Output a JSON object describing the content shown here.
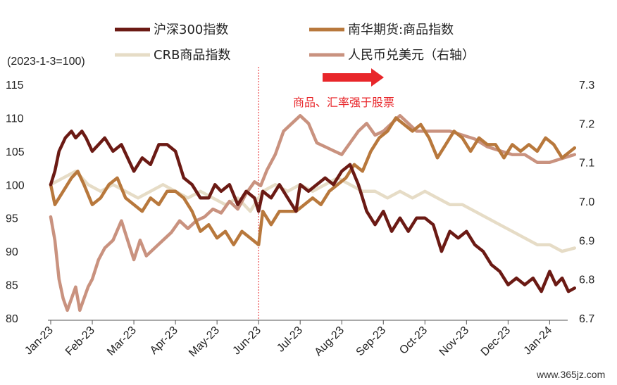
{
  "chart_data": {
    "type": "line",
    "title": "",
    "note": "(2023-1-3=100)",
    "xlabel": "",
    "ylabel": "",
    "x_ticks": [
      "Jan-23",
      "Feb-23",
      "Mar-23",
      "Apr-23",
      "May-23",
      "Jun-23",
      "Jul-23",
      "Aug-23",
      "Sep-23",
      "Oct-23",
      "Nov-23",
      "Dec-23",
      "Jan-24"
    ],
    "ylim": [
      80,
      115
    ],
    "y_ticks": [
      "80",
      "85",
      "90",
      "95",
      "100",
      "105",
      "110",
      "115"
    ],
    "y2lim": [
      6.7,
      7.3
    ],
    "y2_ticks": [
      "6.7",
      "6.8",
      "6.9",
      "7.0",
      "7.1",
      "7.2",
      "7.3"
    ],
    "divider_x": 5,
    "annotation": {
      "text": "商品、汇率强于股票",
      "arrow": "right"
    },
    "watermark": "www.365jz.com",
    "legend": [
      "沪深300指数",
      "南华期货:商品指数",
      "CRB商品指数",
      "人民币兑美元（右轴）"
    ],
    "series": [
      {
        "name": "沪深300指数",
        "color": "#6b1a14",
        "axis": "left",
        "x": [
          0,
          0.1,
          0.2,
          0.35,
          0.5,
          0.6,
          0.75,
          0.85,
          1,
          1.15,
          1.3,
          1.5,
          1.7,
          1.85,
          2,
          2.2,
          2.4,
          2.6,
          2.8,
          3,
          3.2,
          3.4,
          3.6,
          3.8,
          3.95,
          4.1,
          4.3,
          4.5,
          4.7,
          4.9,
          5,
          5.1,
          5.3,
          5.5,
          5.7,
          5.9,
          6,
          6.2,
          6.4,
          6.6,
          6.8,
          7,
          7.2,
          7.4,
          7.6,
          7.8,
          8,
          8.2,
          8.4,
          8.6,
          8.8,
          9,
          9.2,
          9.4,
          9.6,
          9.8,
          10,
          10.2,
          10.4,
          10.6,
          10.8,
          11,
          11.2,
          11.4,
          11.6,
          11.8,
          12,
          12.15,
          12.3,
          12.45,
          12.6
        ],
        "values": [
          100,
          102,
          105,
          107,
          108,
          107,
          108,
          107,
          105,
          106,
          107,
          105,
          106,
          104,
          102,
          104,
          103,
          106,
          106,
          105,
          101,
          100,
          98,
          98,
          100,
          99,
          100,
          97,
          99,
          98,
          96,
          99,
          98,
          100,
          98,
          96,
          100,
          99,
          100,
          101,
          100,
          102,
          103,
          100,
          96,
          94,
          96,
          93,
          95,
          93,
          95,
          95,
          94,
          90,
          93,
          92,
          93,
          91,
          90,
          88,
          87,
          85,
          86,
          85,
          86,
          84,
          87,
          85,
          86,
          84,
          84.5
        ]
      },
      {
        "name": "南华期货:商品指数",
        "color": "#b8783c",
        "axis": "left",
        "x": [
          0,
          0.1,
          0.3,
          0.5,
          0.65,
          0.8,
          1,
          1.2,
          1.4,
          1.6,
          1.8,
          2,
          2.2,
          2.4,
          2.6,
          2.8,
          3,
          3.2,
          3.4,
          3.6,
          3.8,
          4,
          4.2,
          4.4,
          4.6,
          4.8,
          5,
          5.1,
          5.3,
          5.5,
          5.7,
          5.9,
          6.1,
          6.3,
          6.5,
          6.7,
          6.9,
          7.1,
          7.3,
          7.5,
          7.7,
          7.9,
          8.1,
          8.3,
          8.5,
          8.7,
          8.9,
          9.1,
          9.3,
          9.5,
          9.7,
          9.9,
          10.1,
          10.3,
          10.5,
          10.7,
          10.9,
          11.1,
          11.3,
          11.5,
          11.7,
          11.9,
          12.1,
          12.3,
          12.5,
          12.6
        ],
        "values": [
          100,
          97,
          99,
          101,
          102,
          100,
          97,
          98,
          100,
          101,
          98,
          97,
          96,
          98,
          97,
          99,
          99,
          98,
          96,
          93,
          94,
          92,
          93,
          91,
          93,
          92,
          91,
          96,
          94,
          96,
          96,
          96,
          97,
          98,
          97,
          99,
          100,
          101,
          103,
          102,
          105,
          107,
          108,
          110,
          109,
          108,
          109,
          107,
          104,
          106,
          108,
          107,
          105,
          107,
          106,
          106,
          104,
          106,
          105,
          106,
          105,
          107,
          106,
          104,
          105,
          105.5
        ]
      },
      {
        "name": "CRB商品指数",
        "color": "#e6dcc6",
        "axis": "left",
        "x": [
          0,
          0.3,
          0.6,
          0.9,
          1.2,
          1.5,
          1.8,
          2.1,
          2.4,
          2.7,
          3,
          3.3,
          3.6,
          3.9,
          4.2,
          4.5,
          4.8,
          5.1,
          5.4,
          5.7,
          6,
          6.3,
          6.6,
          6.9,
          7.2,
          7.5,
          7.8,
          8.1,
          8.4,
          8.7,
          9,
          9.3,
          9.6,
          9.9,
          10.2,
          10.5,
          10.8,
          11.1,
          11.4,
          11.7,
          12,
          12.3,
          12.6
        ],
        "values": [
          100,
          101,
          102,
          100,
          99,
          100,
          99,
          98,
          99,
          100,
          99,
          98,
          99,
          98,
          97,
          98,
          96,
          99,
          100,
          99,
          100,
          99,
          100,
          101,
          100,
          99,
          99,
          98,
          99,
          98,
          99,
          98,
          97,
          97,
          96,
          95,
          94,
          93,
          92,
          91,
          91,
          90,
          90.5
        ]
      },
      {
        "name": "人民币兑美元（右轴）",
        "color": "#c9927f",
        "axis": "right",
        "x": [
          0,
          0.1,
          0.2,
          0.3,
          0.4,
          0.5,
          0.6,
          0.7,
          0.8,
          0.9,
          1,
          1.15,
          1.3,
          1.5,
          1.7,
          1.85,
          2,
          2.15,
          2.3,
          2.5,
          2.7,
          2.9,
          3.1,
          3.3,
          3.5,
          3.7,
          3.9,
          4.1,
          4.3,
          4.5,
          4.7,
          4.9,
          5.05,
          5.2,
          5.4,
          5.6,
          5.8,
          6,
          6.2,
          6.4,
          6.6,
          6.8,
          7,
          7.2,
          7.4,
          7.6,
          7.8,
          8,
          8.2,
          8.4,
          8.6,
          8.8,
          9,
          9.3,
          9.6,
          9.9,
          10.2,
          10.5,
          10.8,
          11.1,
          11.4,
          11.7,
          12,
          12.3,
          12.6
        ],
        "values": [
          6.96,
          6.9,
          6.8,
          6.75,
          6.72,
          6.75,
          6.78,
          6.72,
          6.75,
          6.78,
          6.8,
          6.85,
          6.88,
          6.9,
          6.95,
          6.9,
          6.85,
          6.9,
          6.86,
          6.88,
          6.9,
          6.92,
          6.95,
          6.93,
          6.95,
          6.96,
          6.98,
          6.97,
          7.0,
          6.98,
          7.02,
          7.05,
          7.04,
          7.08,
          7.12,
          7.18,
          7.2,
          7.22,
          7.2,
          7.15,
          7.14,
          7.13,
          7.12,
          7.15,
          7.18,
          7.2,
          7.17,
          7.18,
          7.2,
          7.22,
          7.2,
          7.18,
          7.18,
          7.18,
          7.18,
          7.17,
          7.16,
          7.14,
          7.13,
          7.12,
          7.12,
          7.1,
          7.1,
          7.11,
          7.12
        ]
      }
    ]
  }
}
